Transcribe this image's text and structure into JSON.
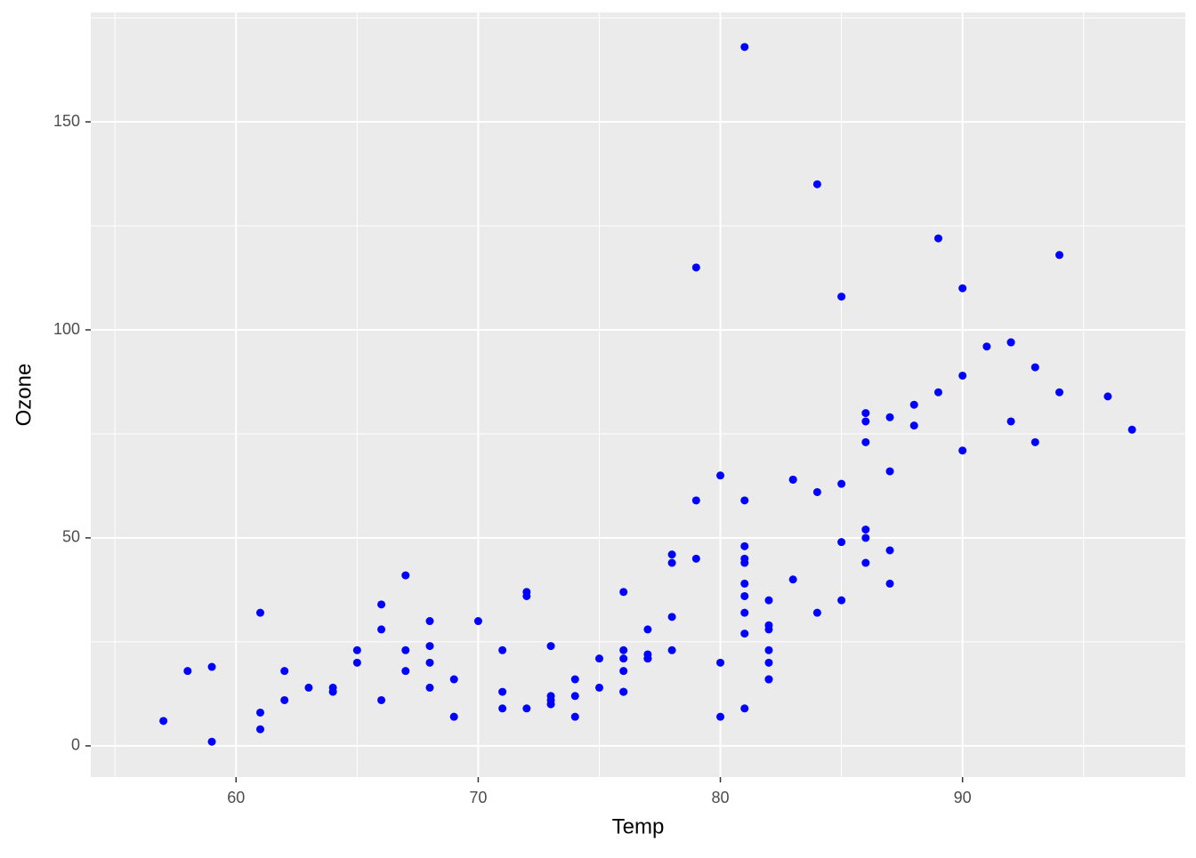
{
  "chart_data": {
    "type": "scatter",
    "x_label": "Temp",
    "y_label": "Ozone",
    "color": "#0000ff",
    "xlim": [
      54.0,
      99.2
    ],
    "ylim": [
      -7.5,
      176.3
    ],
    "xticks": [
      60,
      70,
      80,
      90
    ],
    "yticks": [
      0,
      50,
      100,
      150
    ],
    "xminor": [
      55,
      65,
      75,
      85,
      95
    ],
    "yminor": [
      25,
      75,
      125,
      175
    ],
    "grid": true,
    "x": [
      67,
      72,
      74,
      62,
      66,
      65,
      59,
      61,
      74,
      69,
      66,
      68,
      58,
      64,
      66,
      57,
      68,
      62,
      59,
      73,
      61,
      61,
      67,
      81,
      79,
      76,
      82,
      90,
      87,
      82,
      77,
      72,
      65,
      73,
      76,
      84,
      85,
      81,
      83,
      83,
      88,
      92,
      92,
      89,
      73,
      81,
      80,
      81,
      82,
      84,
      87,
      85,
      74,
      86,
      85,
      82,
      86,
      88,
      86,
      83,
      81,
      81,
      81,
      82,
      86,
      85,
      87,
      89,
      90,
      90,
      86,
      82,
      80,
      77,
      79,
      76,
      78,
      78,
      77,
      72,
      79,
      81,
      86,
      97,
      94,
      96,
      94,
      91,
      92,
      93,
      93,
      87,
      84,
      80,
      78,
      75,
      73,
      81,
      76,
      77,
      71,
      71,
      78,
      67,
      76,
      68,
      82,
      64,
      71,
      81,
      69,
      63,
      70,
      75,
      76,
      68
    ],
    "y": [
      41,
      36,
      12,
      18,
      28,
      23,
      19,
      8,
      7,
      16,
      11,
      14,
      18,
      14,
      34,
      6,
      30,
      11,
      1,
      11,
      4,
      32,
      23,
      45,
      115,
      37,
      29,
      71,
      39,
      23,
      21,
      37,
      20,
      12,
      13,
      135,
      49,
      32,
      64,
      40,
      77,
      97,
      97,
      85,
      10,
      27,
      7,
      48,
      35,
      61,
      79,
      63,
      16,
      80,
      108,
      20,
      52,
      82,
      50,
      64,
      59,
      39,
      9,
      16,
      78,
      35,
      66,
      122,
      89,
      110,
      44,
      28,
      65,
      22,
      59,
      23,
      31,
      44,
      21,
      9,
      45,
      168,
      73,
      76,
      118,
      84,
      85,
      96,
      78,
      73,
      91,
      47,
      32,
      20,
      23,
      21,
      24,
      44,
      21,
      28,
      9,
      13,
      46,
      18,
      13,
      24,
      16,
      13,
      23,
      36,
      7,
      14,
      30,
      14,
      18,
      20
    ]
  }
}
